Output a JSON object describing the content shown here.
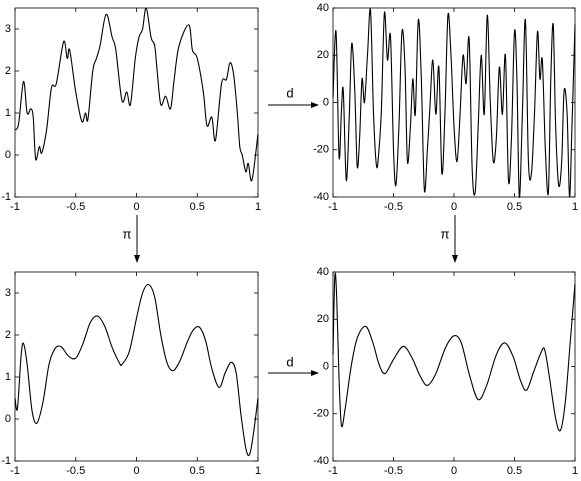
{
  "chart_data": [
    {
      "type": "line",
      "color": "#000000",
      "x": [
        -1,
        -0.97,
        -0.93,
        -0.9,
        -0.87,
        -0.85,
        -0.83,
        -0.8,
        -0.78,
        -0.74,
        -0.7,
        -0.66,
        -0.6,
        -0.57,
        -0.55,
        -0.5,
        -0.45,
        -0.42,
        -0.4,
        -0.36,
        -0.33,
        -0.3,
        -0.25,
        -0.2,
        -0.17,
        -0.12,
        -0.08,
        -0.05,
        -0.01,
        0.02,
        0.05,
        0.08,
        0.12,
        0.15,
        0.17,
        0.2,
        0.24,
        0.28,
        0.31,
        0.35,
        0.43,
        0.46,
        0.5,
        0.55,
        0.58,
        0.62,
        0.65,
        0.7,
        0.74,
        0.77,
        0.8,
        0.83,
        0.85,
        0.87,
        0.9,
        0.92,
        0.95,
        1
      ],
      "values": [
        0.6,
        0.75,
        1.75,
        1.0,
        1.1,
        0.9,
        -0.1,
        0.2,
        0.05,
        0.6,
        1.6,
        1.7,
        2.7,
        2.3,
        2.5,
        1.5,
        0.8,
        1.0,
        0.85,
        2.0,
        2.3,
        2.6,
        3.35,
        2.8,
        2.5,
        1.3,
        1.5,
        1.2,
        2.3,
        2.8,
        3.0,
        3.5,
        2.8,
        2.6,
        2.0,
        1.2,
        1.4,
        1.1,
        1.8,
        2.6,
        3.1,
        2.5,
        2.3,
        1.5,
        0.7,
        0.9,
        0.35,
        1.7,
        1.8,
        2.2,
        1.9,
        1.0,
        0.2,
        0.0,
        -0.4,
        -0.2,
        -0.6,
        0.5
      ],
      "xlim": [
        -1,
        1
      ],
      "xticks": [
        -1,
        -0.5,
        0,
        0.5,
        1
      ],
      "ylim": [
        -1,
        3.5
      ],
      "yticks": [
        -1,
        0,
        1,
        2,
        3
      ]
    },
    {
      "type": "line",
      "color": "#000000",
      "x": [
        -1,
        -0.975,
        -0.95,
        -0.93,
        -0.915,
        -0.89,
        -0.865,
        -0.845,
        -0.82,
        -0.8,
        -0.78,
        -0.76,
        -0.74,
        -0.715,
        -0.69,
        -0.665,
        -0.64,
        -0.62,
        -0.6,
        -0.575,
        -0.55,
        -0.525,
        -0.5,
        -0.48,
        -0.455,
        -0.43,
        -0.405,
        -0.385,
        -0.36,
        -0.34,
        -0.32,
        -0.295,
        -0.27,
        -0.245,
        -0.22,
        -0.2,
        -0.175,
        -0.15,
        -0.125,
        -0.1,
        -0.075,
        -0.05,
        -0.025,
        0,
        0.025,
        0.05,
        0.075,
        0.1,
        0.125,
        0.15,
        0.175,
        0.2,
        0.225,
        0.25,
        0.275,
        0.3,
        0.325,
        0.35,
        0.375,
        0.4,
        0.425,
        0.45,
        0.475,
        0.5,
        0.52,
        0.54,
        0.565,
        0.59,
        0.615,
        0.64,
        0.665,
        0.69,
        0.71,
        0.73,
        0.755,
        0.78,
        0.8,
        0.82,
        0.84,
        0.865,
        0.89,
        0.91,
        0.935,
        0.955,
        0.975,
        1
      ],
      "values": [
        2,
        30,
        -23,
        -3,
        5,
        -33,
        -5,
        25,
        5,
        -27,
        -15,
        10,
        0,
        20,
        39,
        -5,
        -27,
        -20,
        -3,
        38,
        18,
        28,
        -20,
        -35,
        -10,
        30,
        15,
        -25,
        -10,
        10,
        -5,
        35,
        10,
        -37,
        -20,
        -3,
        18,
        -5,
        15,
        -30,
        -5,
        37,
        20,
        -10,
        -25,
        -5,
        20,
        8,
        27,
        -28,
        -38,
        -10,
        20,
        -5,
        37,
        0,
        -25,
        -15,
        15,
        -5,
        20,
        -33,
        -15,
        30,
        10,
        -40,
        -5,
        35,
        -25,
        -30,
        -5,
        30,
        10,
        18,
        -20,
        -38,
        10,
        33,
        -10,
        -35,
        -25,
        5,
        -5,
        -40,
        -10,
        33
      ],
      "xlim": [
        -1,
        1
      ],
      "xticks": [
        -1,
        -0.5,
        0,
        0.5,
        1
      ],
      "ylim": [
        -40,
        40
      ],
      "yticks": [
        -40,
        -20,
        0,
        20,
        40
      ]
    },
    {
      "type": "line",
      "color": "#000000",
      "x": [
        -1,
        -0.98,
        -0.95,
        -0.93,
        -0.9,
        -0.86,
        -0.82,
        -0.77,
        -0.72,
        -0.67,
        -0.62,
        -0.56,
        -0.5,
        -0.44,
        -0.38,
        -0.32,
        -0.26,
        -0.2,
        -0.14,
        -0.12,
        -0.06,
        0,
        0.05,
        0.1,
        0.15,
        0.2,
        0.25,
        0.3,
        0.36,
        0.42,
        0.47,
        0.52,
        0.57,
        0.62,
        0.68,
        0.73,
        0.78,
        0.82,
        0.86,
        0.9,
        0.93,
        0.96,
        1
      ],
      "values": [
        0.5,
        0.25,
        1.5,
        1.8,
        1.3,
        0.2,
        -0.1,
        0.4,
        1.3,
        1.68,
        1.72,
        1.5,
        1.45,
        1.8,
        2.3,
        2.45,
        2.2,
        1.7,
        1.33,
        1.3,
        1.6,
        2.4,
        3.0,
        3.2,
        2.9,
        2.0,
        1.35,
        1.15,
        1.4,
        1.85,
        2.13,
        2.18,
        1.85,
        1.2,
        0.75,
        1.1,
        1.35,
        1.1,
        0.1,
        -0.7,
        -0.85,
        -0.4,
        0.5
      ],
      "xlim": [
        -1,
        1
      ],
      "xticks": [
        -1,
        -0.5,
        0,
        0.5,
        1
      ],
      "ylim": [
        -1,
        3.5
      ],
      "yticks": [
        -1,
        0,
        1,
        2,
        3
      ]
    },
    {
      "type": "line",
      "color": "#000000",
      "x": [
        -1,
        -0.985,
        -0.97,
        -0.95,
        -0.93,
        -0.9,
        -0.85,
        -0.8,
        -0.73,
        -0.67,
        -0.62,
        -0.57,
        -0.5,
        -0.42,
        -0.35,
        -0.28,
        -0.22,
        -0.15,
        -0.07,
        0,
        0.06,
        0.13,
        0.2,
        0.27,
        0.35,
        0.42,
        0.49,
        0.55,
        0.6,
        0.66,
        0.72,
        0.75,
        0.79,
        0.84,
        0.88,
        0.92,
        0.96,
        1
      ],
      "values": [
        5,
        38,
        30,
        -5,
        -25,
        -18,
        0,
        12,
        17,
        10,
        1,
        -3,
        3,
        8.5,
        4,
        -4,
        -8,
        -3,
        8,
        13,
        10,
        -4,
        -14,
        -8,
        5,
        10,
        4,
        -6,
        -10,
        -2,
        6,
        7,
        -5,
        -22,
        -27,
        -15,
        10,
        35
      ],
      "xlim": [
        -1,
        1
      ],
      "xticks": [
        -1,
        -0.5,
        0,
        0.5,
        1
      ],
      "ylim": [
        -40,
        40
      ],
      "yticks": [
        -40,
        -20,
        0,
        20,
        40
      ]
    }
  ],
  "arrows": [
    "d",
    "π",
    "π",
    "d"
  ]
}
